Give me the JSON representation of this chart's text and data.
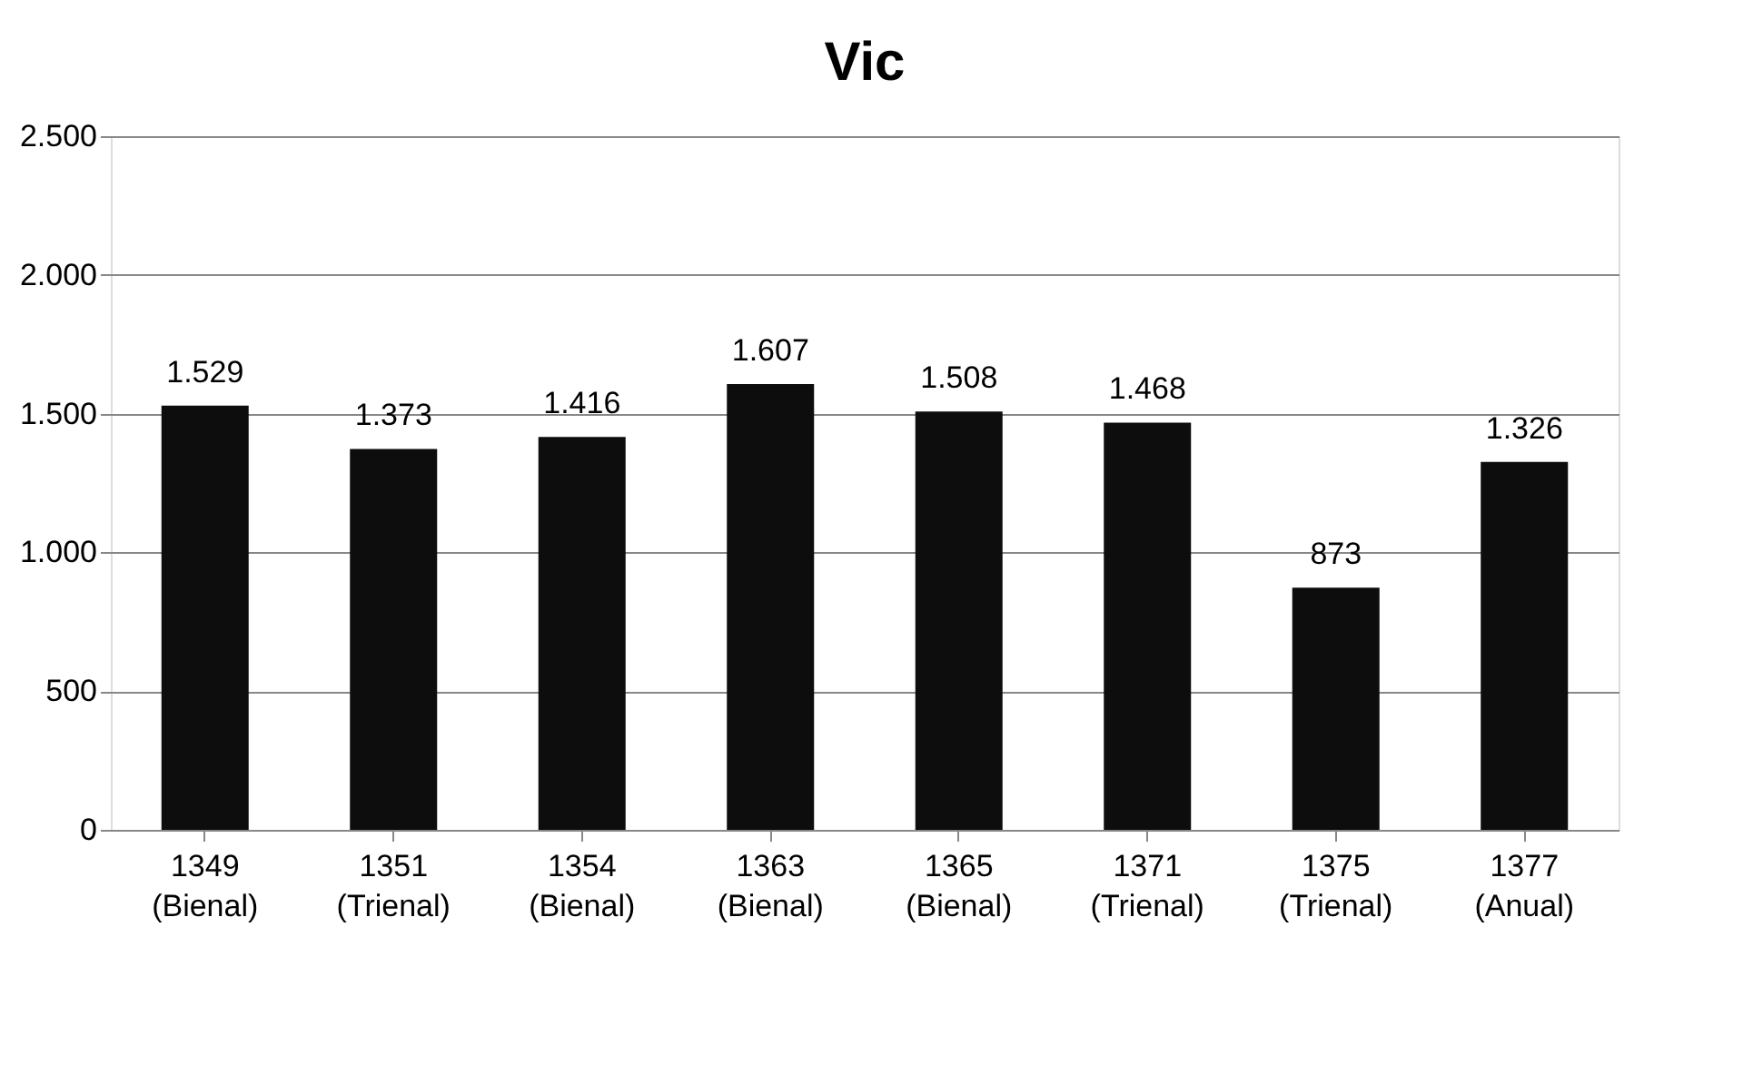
{
  "chart_data": {
    "type": "bar",
    "title": "Vic",
    "categories": [
      "1349 (Bienal)",
      "1351 (Trienal)",
      "1354 (Bienal)",
      "1363 (Bienal)",
      "1365 (Bienal)",
      "1371 (Trienal)",
      "1375 (Trienal)",
      "1377 (Anual)"
    ],
    "values": [
      1529,
      1373,
      1416,
      1607,
      1508,
      1468,
      873,
      1326
    ],
    "value_labels": [
      "1.529",
      "1.373",
      "1.416",
      "1.607",
      "1.508",
      "1.468",
      "873",
      "1.326"
    ],
    "color": "#0d0d0d",
    "ylim": [
      0,
      2500
    ],
    "yticks": [
      0,
      500,
      {
        "value": 1000,
        "label": "1.000"
      },
      {
        "value": 1500,
        "label": "1.500"
      },
      {
        "value": 2000,
        "label": "2.000"
      },
      {
        "value": 2500,
        "label": "2.500"
      }
    ],
    "grid": "y"
  }
}
